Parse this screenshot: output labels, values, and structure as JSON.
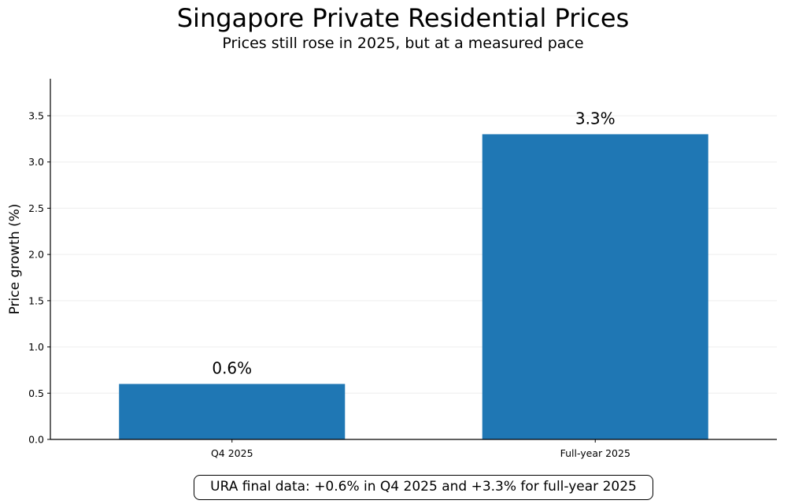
{
  "chart_data": {
    "type": "bar",
    "title": "Singapore Private Residential Prices",
    "subtitle": "Prices still rose in 2025, but at a measured pace",
    "categories": [
      "Q4 2025",
      "Full-year 2025"
    ],
    "values": [
      0.6,
      3.3
    ],
    "data_labels": [
      "0.6%",
      "3.3%"
    ],
    "xlabel": "",
    "ylabel": "Price growth (%)",
    "ylim": [
      0,
      3.9
    ],
    "yticks": [
      0.0,
      0.5,
      1.0,
      1.5,
      2.0,
      2.5,
      3.0,
      3.5
    ],
    "ytick_labels": [
      "0.0",
      "0.5",
      "1.0",
      "1.5",
      "2.0",
      "2.5",
      "3.0",
      "3.5"
    ],
    "grid": "y-only, faint",
    "bar_color": "#1f77b4",
    "annotation": "URA final data: +0.6% in Q4 2025 and +3.3% for full-year 2025"
  }
}
